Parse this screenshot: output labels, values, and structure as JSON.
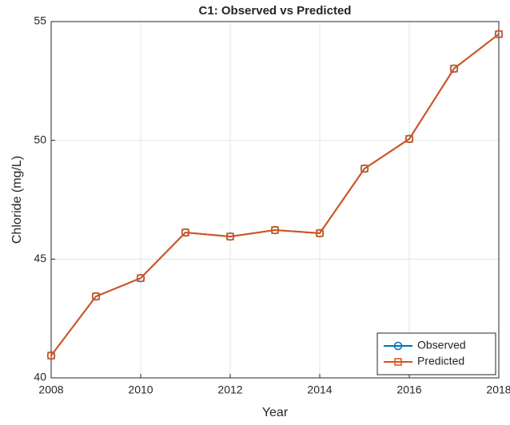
{
  "chart_data": {
    "type": "line",
    "title": "C1: Observed vs Predicted",
    "xlabel": "Year",
    "ylabel": "Chloride (mg/L)",
    "x": [
      2008,
      2009,
      2010,
      2011,
      2012,
      2013,
      2014,
      2015,
      2016,
      2017,
      2018
    ],
    "series": [
      {
        "name": "Observed",
        "color": "#0072BD",
        "marker": "circle",
        "values": [
          40.94,
          43.43,
          44.2,
          46.12,
          45.95,
          46.22,
          46.09,
          48.81,
          50.06,
          53.02,
          54.47
        ]
      },
      {
        "name": "Predicted",
        "color": "#D95319",
        "marker": "square",
        "values": [
          40.94,
          43.43,
          44.2,
          46.12,
          45.95,
          46.22,
          46.09,
          48.81,
          50.06,
          53.02,
          54.47
        ]
      }
    ],
    "xlim": [
      2008,
      2018
    ],
    "xticks": [
      2008,
      2010,
      2012,
      2014,
      2016,
      2018
    ],
    "ylim": [
      40,
      55
    ],
    "yticks": [
      40,
      45,
      50,
      55
    ],
    "grid": true,
    "legend": "lower right"
  }
}
